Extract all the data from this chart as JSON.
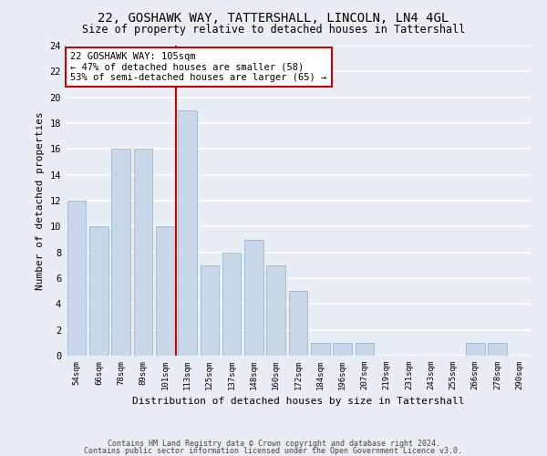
{
  "title": "22, GOSHAWK WAY, TATTERSHALL, LINCOLN, LN4 4GL",
  "subtitle": "Size of property relative to detached houses in Tattershall",
  "bar_labels": [
    "54sqm",
    "66sqm",
    "78sqm",
    "89sqm",
    "101sqm",
    "113sqm",
    "125sqm",
    "137sqm",
    "148sqm",
    "160sqm",
    "172sqm",
    "184sqm",
    "196sqm",
    "207sqm",
    "219sqm",
    "231sqm",
    "243sqm",
    "255sqm",
    "266sqm",
    "278sqm",
    "290sqm"
  ],
  "bar_values": [
    12,
    10,
    16,
    16,
    10,
    19,
    7,
    8,
    9,
    7,
    5,
    1,
    1,
    1,
    0,
    0,
    0,
    0,
    1,
    1,
    0
  ],
  "bar_color": "#c8d8ea",
  "bar_edge_color": "#98b8d0",
  "property_line_x": 4.5,
  "property_line_color": "#cc0000",
  "annotation_line1": "22 GOSHAWK WAY: 105sqm",
  "annotation_line2": "← 47% of detached houses are smaller (58)",
  "annotation_line3": "53% of semi-detached houses are larger (65) →",
  "annotation_box_color": "#ffffff",
  "annotation_box_edge_color": "#cc0000",
  "xlabel": "Distribution of detached houses by size in Tattershall",
  "ylabel": "Number of detached properties",
  "ylim": [
    0,
    24
  ],
  "yticks": [
    0,
    2,
    4,
    6,
    8,
    10,
    12,
    14,
    16,
    18,
    20,
    22,
    24
  ],
  "footer_line1": "Contains HM Land Registry data © Crown copyright and database right 2024.",
  "footer_line2": "Contains public sector information licensed under the Open Government Licence v3.0.",
  "bg_color": "#e8eef4",
  "plot_bg_color": "#e8eef4",
  "grid_color": "#ffffff"
}
